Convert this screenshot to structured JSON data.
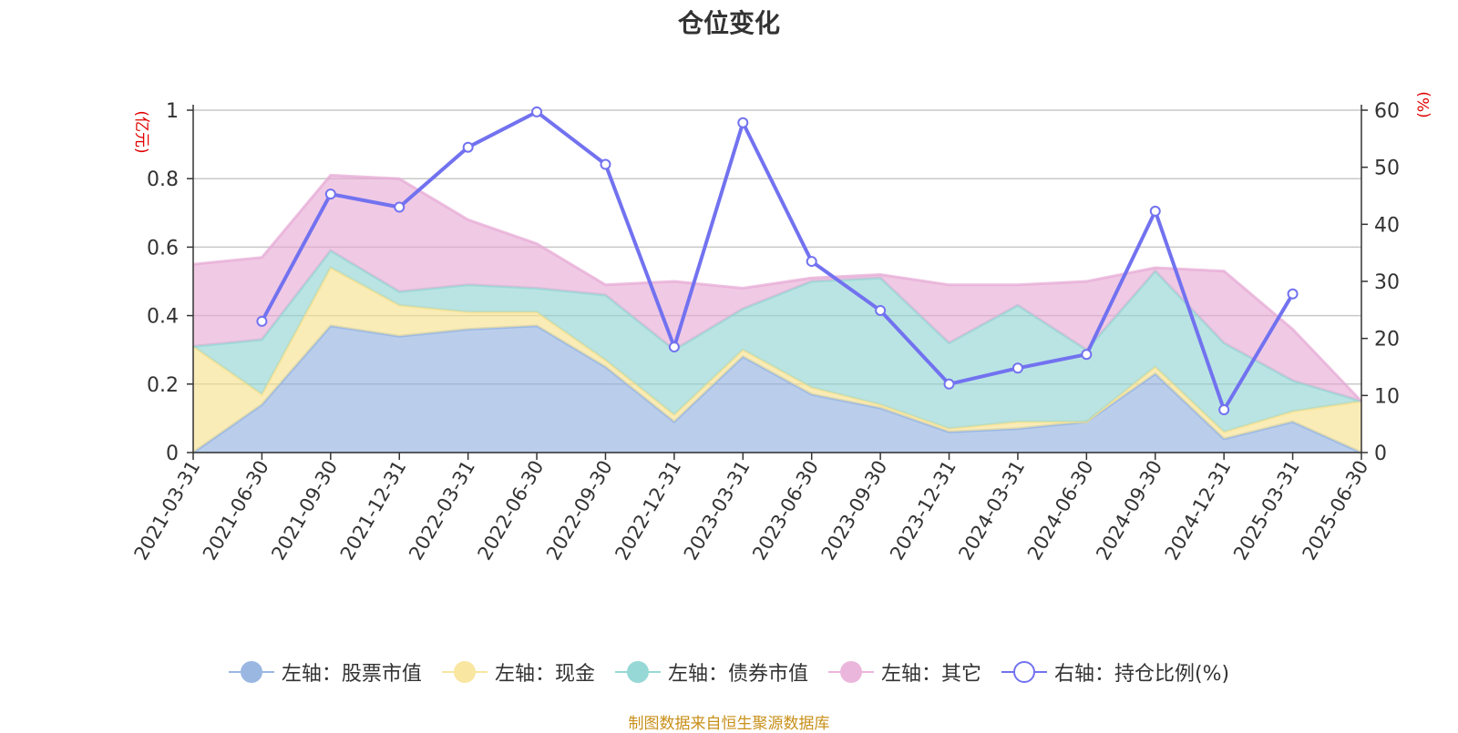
{
  "chart_data": {
    "type": "area",
    "title": "仓位变化",
    "left_axis_unit": "(亿元)",
    "right_axis_unit": "(%)",
    "categories": [
      "2021-03-31",
      "2021-06-30",
      "2021-09-30",
      "2021-12-31",
      "2022-03-31",
      "2022-06-30",
      "2022-09-30",
      "2022-12-31",
      "2023-03-31",
      "2023-06-30",
      "2023-09-30",
      "2023-12-31",
      "2024-03-31",
      "2024-06-30",
      "2024-09-30",
      "2024-12-31",
      "2025-03-31",
      "2025-06-30"
    ],
    "left_ylim": [
      0,
      1
    ],
    "left_ticks": [
      "0",
      "0.2",
      "0.4",
      "0.6",
      "0.8",
      "1"
    ],
    "right_ylim": [
      0,
      60
    ],
    "right_ticks": [
      "0",
      "10",
      "20",
      "30",
      "40",
      "50",
      "60"
    ],
    "stacked_series": [
      {
        "name": "左轴：股票市值",
        "color": "#8fb0e0",
        "values": [
          0,
          0.14,
          0.37,
          0.34,
          0.36,
          0.37,
          0.25,
          0.09,
          0.28,
          0.17,
          0.13,
          0.06,
          0.07,
          0.09,
          0.23,
          0.04,
          0.09,
          0
        ]
      },
      {
        "name": "左轴：现金",
        "color": "#f7e08a",
        "values": [
          0.31,
          0.03,
          0.17,
          0.09,
          0.05,
          0.04,
          0.02,
          0.02,
          0.02,
          0.02,
          0.01,
          0.01,
          0.02,
          0.0,
          0.02,
          0.02,
          0.03,
          0.15
        ]
      },
      {
        "name": "左轴：债券市值",
        "color": "#8fd4d2",
        "values": [
          0,
          0.16,
          0.05,
          0.04,
          0.08,
          0.07,
          0.19,
          0.19,
          0.12,
          0.31,
          0.37,
          0.25,
          0.34,
          0.21,
          0.28,
          0.26,
          0.09,
          0
        ]
      },
      {
        "name": "左轴：其它",
        "color": "#e6a8d4",
        "values": [
          0.24,
          0.24,
          0.22,
          0.33,
          0.19,
          0.13,
          0.03,
          0.2,
          0.06,
          0.01,
          0.01,
          0.17,
          0.06,
          0.2,
          0.01,
          0.21,
          0.15,
          0
        ]
      }
    ],
    "line_series": {
      "name": "右轴：持仓比例(%)",
      "color": "#7272f0",
      "values": [
        null,
        23.0,
        45.3,
        43.0,
        53.5,
        59.7,
        50.5,
        18.5,
        57.8,
        33.5,
        24.9,
        12.0,
        14.8,
        17.2,
        42.3,
        7.5,
        27.8,
        null
      ]
    },
    "legend": [
      {
        "label": "左轴：股票市值",
        "color": "#9ab7e2",
        "style": "area"
      },
      {
        "label": "左轴：现金",
        "color": "#f9e6a0",
        "style": "area"
      },
      {
        "label": "左轴：债券市值",
        "color": "#96d8d6",
        "style": "area"
      },
      {
        "label": "左轴：其它",
        "color": "#ebb6dc",
        "style": "area"
      },
      {
        "label": "右轴：持仓比例(%)",
        "color": "#7272f0",
        "style": "line"
      }
    ],
    "source": "制图数据来自恒生聚源数据库"
  }
}
